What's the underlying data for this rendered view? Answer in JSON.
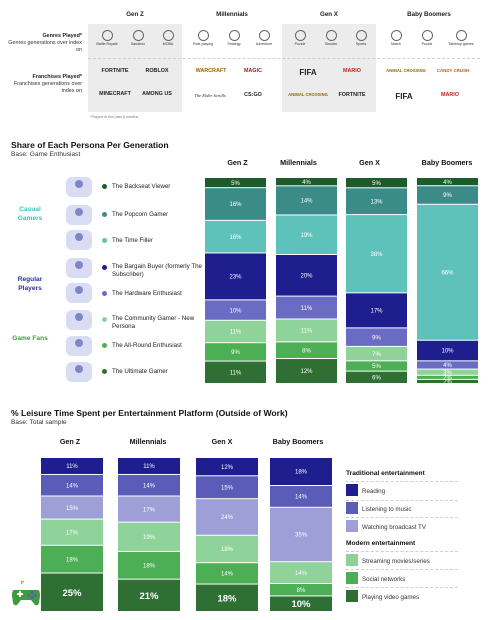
{
  "top": {
    "generations": [
      "Gen Z",
      "Millennials",
      "Gen X",
      "Baby Boomers"
    ],
    "genres_row": {
      "title": "Genres Played*",
      "subtitle": "Genres generations over index on",
      "items": [
        [
          "Battle Royale",
          "Sandbox",
          "MOBA"
        ],
        [
          "Role-playing",
          "Strategy",
          "Adventure"
        ],
        [
          "Puzzle",
          "Shooter",
          "Sports"
        ],
        [
          "Match",
          "Puzzle",
          "Tabletop games"
        ]
      ]
    },
    "franchises_row": {
      "title": "Franchises Played*",
      "subtitle": "Franchises generations over index on",
      "items": [
        [
          "FORTNITE",
          "ROBLOX",
          "MINECRAFT",
          "AMONG US"
        ],
        [
          "WARCRAFT",
          "MAGIC",
          "The Elder Scrolls",
          "CS:GO"
        ],
        [
          "FIFA",
          "MARIO",
          "ANIMAL CROSSING",
          "FORTNITE"
        ],
        [
          "ANIMAL CROSSING",
          "CANDY CRUSH",
          "FIFA",
          "MARIO"
        ]
      ]
    },
    "footnote": "*Played in the past 6 months"
  },
  "persona_section": {
    "title": "Share of Each Persona Per Generation",
    "subtitle": "Base: Game Enthusiast",
    "groups": [
      {
        "label": "Casual Gamers",
        "color": "#3bbfc0"
      },
      {
        "label": "Regular Players",
        "color": "#2a2f9a"
      },
      {
        "label": "Game Fans",
        "color": "#3e9c3e"
      }
    ],
    "personas": [
      {
        "label": "The Backseat Viewer",
        "color": "#1e5b2c"
      },
      {
        "label": "The Popcorn Gamer",
        "color": "#3b8c88"
      },
      {
        "label": "The Time Filler",
        "color": "#5fc2ba"
      },
      {
        "label": "The Bargain Buyer (formerly The Subscriber)",
        "color": "#1e1e8e"
      },
      {
        "label": "The Hardware Enthusiast",
        "color": "#6a6cc4"
      },
      {
        "label": "The Community Gamer - New Persona",
        "color": "#8fd29a"
      },
      {
        "label": "The All-Round Enthusiast",
        "color": "#4caf55"
      },
      {
        "label": "The Ultimate Gamer",
        "color": "#2f6f34"
      }
    ]
  },
  "chart_data": [
    {
      "type": "bar",
      "stacked": true,
      "orientation": "vertical",
      "title": "Share of Each Persona Per Generation",
      "subtitle": "Base: Game Enthusiast",
      "categories": [
        "Gen Z",
        "Millennials",
        "Gen X",
        "Baby Boomers"
      ],
      "series": [
        {
          "name": "The Backseat Viewer",
          "color": "#1e5b2c",
          "values": [
            5,
            4,
            5,
            4
          ]
        },
        {
          "name": "The Popcorn Gamer",
          "color": "#3b8c88",
          "values": [
            16,
            14,
            13,
            9
          ]
        },
        {
          "name": "The Time Filler",
          "color": "#5fc2ba",
          "values": [
            16,
            19,
            38,
            66
          ]
        },
        {
          "name": "The Bargain Buyer (formerly The Subscriber)",
          "color": "#1e1e8e",
          "values": [
            23,
            20,
            17,
            10
          ]
        },
        {
          "name": "The Hardware Enthusiast",
          "color": "#6a6cc4",
          "values": [
            10,
            11,
            9,
            4
          ]
        },
        {
          "name": "The Community Gamer - New Persona",
          "color": "#8fd29a",
          "values": [
            11,
            11,
            7,
            3
          ]
        },
        {
          "name": "The All-Round Enthusiast",
          "color": "#4caf55",
          "values": [
            9,
            8,
            5,
            2
          ]
        },
        {
          "name": "The Ultimate Gamer",
          "color": "#2f6f34",
          "values": [
            11,
            12,
            6,
            2
          ]
        }
      ],
      "value_suffix": "%"
    },
    {
      "type": "bar",
      "stacked": true,
      "orientation": "vertical",
      "title": "% Leisure Time Spent per Entertainment Platform (Outside of Work)",
      "subtitle": "Base: Total sample",
      "categories": [
        "Gen Z",
        "Millennials",
        "Gen X",
        "Baby Boomers"
      ],
      "series": [
        {
          "name": "Reading",
          "group": "Traditional entertainment",
          "color": "#1e1e8e",
          "values": [
            11,
            11,
            12,
            18
          ]
        },
        {
          "name": "Listening to music",
          "group": "Traditional entertainment",
          "color": "#5a5cb8",
          "values": [
            14,
            14,
            15,
            14
          ]
        },
        {
          "name": "Watching broadcast TV",
          "group": "Traditional entertainment",
          "color": "#9d9fd6",
          "values": [
            15,
            17,
            24,
            35
          ]
        },
        {
          "name": "Streaming movies/series",
          "group": "Modern entertainment",
          "color": "#8fd29a",
          "values": [
            17,
            19,
            18,
            14
          ]
        },
        {
          "name": "Social networks",
          "group": "Modern entertainment",
          "color": "#4caf55",
          "values": [
            18,
            18,
            14,
            8
          ]
        },
        {
          "name": "Playing video games",
          "group": "Modern entertainment",
          "color": "#2f6f34",
          "values": [
            25,
            21,
            18,
            10
          ]
        }
      ],
      "value_suffix": "%"
    }
  ],
  "leisure_section": {
    "title": "% Leisure Time Spent per Entertainment Platform (Outside of Work)",
    "subtitle": "Base: Total sample",
    "legend": [
      {
        "heading": "Traditional entertainment",
        "items": [
          {
            "label": "Reading",
            "color": "#1e1e8e"
          },
          {
            "label": "Listening to music",
            "color": "#5a5cb8"
          },
          {
            "label": "Watching broadcast TV",
            "color": "#9d9fd6"
          }
        ]
      },
      {
        "heading": "Modern entertainment",
        "items": [
          {
            "label": "Streaming movies/series",
            "color": "#8fd29a"
          },
          {
            "label": "Social networks",
            "color": "#4caf55"
          },
          {
            "label": "Playing video games",
            "color": "#2f6f34"
          }
        ]
      }
    ]
  }
}
